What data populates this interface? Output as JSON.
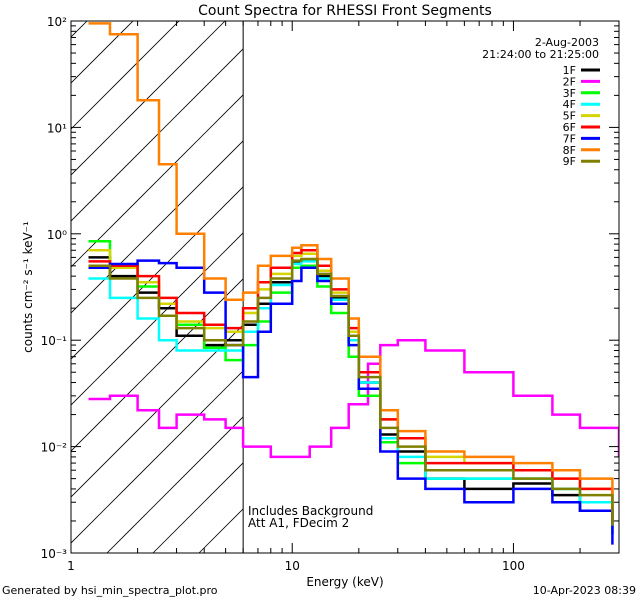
{
  "chart_data": {
    "type": "line",
    "title": "Count Spectra for RHESSI Front Segments",
    "xlabel": "Energy (keV)",
    "ylabel": "counts cm⁻² s⁻¹ keV⁻¹",
    "x_scale": "log",
    "y_scale": "log",
    "xlim": [
      1,
      300
    ],
    "ylim": [
      0.001,
      100
    ],
    "x_ticks": [
      {
        "value": 1,
        "label": "1"
      },
      {
        "value": 10,
        "label": "10"
      },
      {
        "value": 100,
        "label": "100"
      }
    ],
    "y_ticks": [
      {
        "value": 100,
        "label": "10²"
      },
      {
        "value": 10,
        "label": "10¹"
      },
      {
        "value": 1,
        "label": "10⁰"
      },
      {
        "value": 0.1,
        "label": "10⁻¹"
      },
      {
        "value": 0.01,
        "label": "10⁻²"
      },
      {
        "value": 0.001,
        "label": "10⁻³"
      }
    ],
    "date": "2-Aug-2003",
    "time_range": "21:24:00 to 21:25:00",
    "annotations": [
      "Includes Background",
      "Att A1, FDecim 2"
    ],
    "hatched_region_below_keV": 6,
    "series": [
      {
        "name": "1F",
        "color": "#000000",
        "points": [
          [
            1.2,
            0.6
          ],
          [
            1.5,
            0.4
          ],
          [
            2,
            0.28
          ],
          [
            2.5,
            0.2
          ],
          [
            3,
            0.11
          ],
          [
            4,
            0.09
          ],
          [
            5,
            0.1
          ],
          [
            6,
            0.14
          ],
          [
            7,
            0.22
          ],
          [
            8,
            0.35
          ],
          [
            10,
            0.55
          ],
          [
            11,
            0.57
          ],
          [
            13,
            0.4
          ],
          [
            15,
            0.25
          ],
          [
            18,
            0.1
          ],
          [
            20,
            0.04
          ],
          [
            25,
            0.013
          ],
          [
            30,
            0.009
          ],
          [
            40,
            0.005
          ],
          [
            60,
            0.004
          ],
          [
            100,
            0.0045
          ],
          [
            150,
            0.0035
          ],
          [
            200,
            0.0025
          ],
          [
            280,
            0.0015
          ]
        ]
      },
      {
        "name": "2F",
        "color": "#ff00ff",
        "points": [
          [
            1.2,
            0.028
          ],
          [
            1.5,
            0.03
          ],
          [
            2,
            0.022
          ],
          [
            2.5,
            0.015
          ],
          [
            3,
            0.02
          ],
          [
            4,
            0.018
          ],
          [
            5,
            0.015
          ],
          [
            6,
            0.01
          ],
          [
            7,
            0.01
          ],
          [
            8,
            0.008
          ],
          [
            10,
            0.008
          ],
          [
            12,
            0.01
          ],
          [
            15,
            0.015
          ],
          [
            18,
            0.025
          ],
          [
            22,
            0.06
          ],
          [
            25,
            0.09
          ],
          [
            30,
            0.1
          ],
          [
            40,
            0.08
          ],
          [
            60,
            0.05
          ],
          [
            100,
            0.03
          ],
          [
            150,
            0.02
          ],
          [
            200,
            0.015
          ],
          [
            300,
            0.008
          ]
        ]
      },
      {
        "name": "3F",
        "color": "#00ff00",
        "points": [
          [
            1.2,
            0.85
          ],
          [
            1.5,
            0.5
          ],
          [
            2,
            0.32
          ],
          [
            2.5,
            0.22
          ],
          [
            3,
            0.14
          ],
          [
            4,
            0.085
          ],
          [
            5,
            0.065
          ],
          [
            6,
            0.09
          ],
          [
            7,
            0.15
          ],
          [
            8,
            0.28
          ],
          [
            10,
            0.48
          ],
          [
            11,
            0.5
          ],
          [
            13,
            0.32
          ],
          [
            15,
            0.18
          ],
          [
            18,
            0.07
          ],
          [
            20,
            0.03
          ],
          [
            25,
            0.011
          ],
          [
            30,
            0.007
          ],
          [
            40,
            0.005
          ],
          [
            60,
            0.005
          ],
          [
            100,
            0.005
          ],
          [
            150,
            0.004
          ],
          [
            200,
            0.003
          ],
          [
            280,
            0.0018
          ]
        ]
      },
      {
        "name": "4F",
        "color": "#00ffff",
        "points": [
          [
            1.2,
            0.38
          ],
          [
            1.5,
            0.25
          ],
          [
            2,
            0.16
          ],
          [
            2.5,
            0.1
          ],
          [
            3,
            0.08
          ],
          [
            4,
            0.08
          ],
          [
            5,
            0.08
          ],
          [
            6,
            0.12
          ],
          [
            7,
            0.2
          ],
          [
            8,
            0.33
          ],
          [
            10,
            0.52
          ],
          [
            11,
            0.55
          ],
          [
            13,
            0.38
          ],
          [
            15,
            0.24
          ],
          [
            18,
            0.1
          ],
          [
            20,
            0.04
          ],
          [
            25,
            0.012
          ],
          [
            30,
            0.008
          ],
          [
            40,
            0.005
          ],
          [
            60,
            0.005
          ],
          [
            100,
            0.005
          ],
          [
            150,
            0.004
          ],
          [
            200,
            0.003
          ],
          [
            280,
            0.0015
          ]
        ]
      },
      {
        "name": "5F",
        "color": "#d4d400",
        "points": [
          [
            1.2,
            0.7
          ],
          [
            1.5,
            0.48
          ],
          [
            2,
            0.35
          ],
          [
            2.5,
            0.22
          ],
          [
            3,
            0.15
          ],
          [
            4,
            0.13
          ],
          [
            5,
            0.12
          ],
          [
            6,
            0.18
          ],
          [
            7,
            0.3
          ],
          [
            8,
            0.42
          ],
          [
            10,
            0.62
          ],
          [
            11,
            0.65
          ],
          [
            13,
            0.45
          ],
          [
            15,
            0.28
          ],
          [
            18,
            0.12
          ],
          [
            20,
            0.05
          ],
          [
            25,
            0.018
          ],
          [
            30,
            0.012
          ],
          [
            40,
            0.008
          ],
          [
            60,
            0.007
          ],
          [
            100,
            0.006
          ],
          [
            150,
            0.005
          ],
          [
            200,
            0.004
          ],
          [
            280,
            0.0022
          ]
        ]
      },
      {
        "name": "6F",
        "color": "#ff0000",
        "points": [
          [
            1.2,
            0.55
          ],
          [
            1.5,
            0.5
          ],
          [
            2,
            0.4
          ],
          [
            2.5,
            0.25
          ],
          [
            3,
            0.18
          ],
          [
            4,
            0.14
          ],
          [
            5,
            0.13
          ],
          [
            6,
            0.2
          ],
          [
            7,
            0.35
          ],
          [
            8,
            0.48
          ],
          [
            10,
            0.66
          ],
          [
            11,
            0.7
          ],
          [
            13,
            0.5
          ],
          [
            15,
            0.3
          ],
          [
            18,
            0.13
          ],
          [
            20,
            0.05
          ],
          [
            25,
            0.018
          ],
          [
            30,
            0.012
          ],
          [
            40,
            0.007
          ],
          [
            60,
            0.007
          ],
          [
            100,
            0.006
          ],
          [
            150,
            0.005
          ],
          [
            200,
            0.004
          ],
          [
            280,
            0.002
          ]
        ]
      },
      {
        "name": "7F",
        "color": "#0000ff",
        "points": [
          [
            1.2,
            0.48
          ],
          [
            1.5,
            0.52
          ],
          [
            2,
            0.56
          ],
          [
            2.5,
            0.53
          ],
          [
            3,
            0.48
          ],
          [
            4,
            0.28
          ],
          [
            5,
            0.09
          ],
          [
            6,
            0.045
          ],
          [
            7,
            0.12
          ],
          [
            8,
            0.22
          ],
          [
            10,
            0.36
          ],
          [
            11,
            0.48
          ],
          [
            13,
            0.36
          ],
          [
            15,
            0.22
          ],
          [
            18,
            0.09
          ],
          [
            20,
            0.035
          ],
          [
            25,
            0.009
          ],
          [
            30,
            0.005
          ],
          [
            40,
            0.004
          ],
          [
            60,
            0.003
          ],
          [
            100,
            0.004
          ],
          [
            150,
            0.003
          ],
          [
            200,
            0.0025
          ],
          [
            280,
            0.0012
          ]
        ]
      },
      {
        "name": "8F",
        "color": "#ff7f00",
        "points": [
          [
            1.2,
            95
          ],
          [
            1.5,
            75
          ],
          [
            2,
            18
          ],
          [
            2.5,
            4.5
          ],
          [
            3,
            1.0
          ],
          [
            4,
            0.38
          ],
          [
            5,
            0.24
          ],
          [
            6,
            0.28
          ],
          [
            7,
            0.5
          ],
          [
            8,
            0.62
          ],
          [
            10,
            0.74
          ],
          [
            11,
            0.78
          ],
          [
            13,
            0.58
          ],
          [
            15,
            0.38
          ],
          [
            18,
            0.16
          ],
          [
            20,
            0.07
          ],
          [
            25,
            0.022
          ],
          [
            30,
            0.014
          ],
          [
            40,
            0.009
          ],
          [
            60,
            0.008
          ],
          [
            100,
            0.007
          ],
          [
            150,
            0.006
          ],
          [
            200,
            0.005
          ],
          [
            280,
            0.0025
          ]
        ]
      },
      {
        "name": "9F",
        "color": "#808000",
        "points": [
          [
            1.2,
            0.5
          ],
          [
            1.5,
            0.38
          ],
          [
            2,
            0.25
          ],
          [
            2.5,
            0.17
          ],
          [
            3,
            0.13
          ],
          [
            4,
            0.1
          ],
          [
            5,
            0.09
          ],
          [
            6,
            0.15
          ],
          [
            7,
            0.25
          ],
          [
            8,
            0.38
          ],
          [
            10,
            0.56
          ],
          [
            11,
            0.58
          ],
          [
            13,
            0.42
          ],
          [
            15,
            0.26
          ],
          [
            18,
            0.11
          ],
          [
            20,
            0.045
          ],
          [
            25,
            0.015
          ],
          [
            30,
            0.01
          ],
          [
            40,
            0.006
          ],
          [
            60,
            0.006
          ],
          [
            100,
            0.005
          ],
          [
            150,
            0.004
          ],
          [
            200,
            0.0035
          ],
          [
            280,
            0.0018
          ]
        ]
      }
    ]
  },
  "footer": {
    "generated_by": "Generated by hsi_min_spectra_plot.pro",
    "timestamp": "10-Apr-2023 08:39"
  }
}
